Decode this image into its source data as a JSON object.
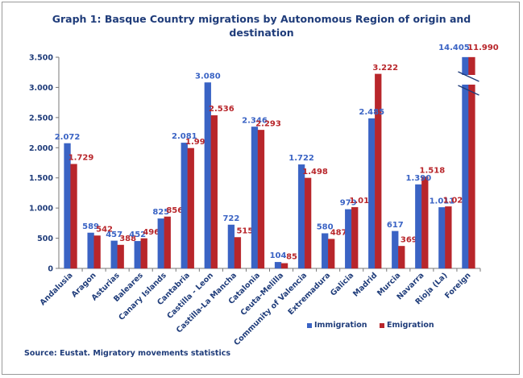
{
  "chart_data": {
    "type": "bar",
    "title_lines": [
      "Graph 1: Basque Country migrations  by Autonomous  Region of origin  and",
      "destination"
    ],
    "categories": [
      "Andalusia",
      "Aragon",
      "Asturias",
      "Baleares",
      "Canary Islands",
      "Cantabria",
      "Castilla - Leon",
      "Castilla-La Mancha",
      "Catalonia",
      "Ceuta-Melilla",
      "Community of Valencia",
      "Extremadura",
      "Galicia",
      "Madrid",
      "Murcia",
      "Navarra",
      "Rioja (La)",
      "Foreign"
    ],
    "series": [
      {
        "name": "Immigration",
        "color": "#3a63c4",
        "values": [
          2072,
          589,
          457,
          452,
          825,
          2081,
          3080,
          722,
          2346,
          104,
          1722,
          580,
          979,
          2485,
          617,
          1390,
          1011,
          14405
        ],
        "labels": [
          "2.072",
          "589",
          "457",
          "452",
          "825",
          "2.081",
          "3.080",
          "722",
          "2.346",
          "104",
          "1.722",
          "580",
          "979",
          "2.485",
          "617",
          "1.390",
          "1.011",
          "14.405"
        ]
      },
      {
        "name": "Emigration",
        "color": "#b8262b",
        "values": [
          1729,
          542,
          388,
          496,
          856,
          1992,
          2536,
          515,
          2293,
          85,
          1498,
          487,
          1014,
          3222,
          369,
          1518,
          1025,
          11990
        ],
        "labels": [
          "1.729",
          "542",
          "388",
          "496",
          "856",
          "1.992",
          "2.536",
          "515",
          "2.293",
          "85",
          "1.498",
          "487",
          "1.014",
          "3.222",
          "369",
          "1.518",
          "1.025",
          "11.990"
        ]
      }
    ],
    "ylim": [
      0,
      3500
    ],
    "yticks": [
      0,
      500,
      1000,
      1500,
      2000,
      2500,
      3000,
      3500
    ],
    "ytick_labels": [
      "0",
      "500",
      "1.000",
      "1.500",
      "2.000",
      "2.500",
      "3.000",
      "3.500"
    ],
    "axis_break": "Foreign",
    "grid": false,
    "legend_position": "bottom-right"
  },
  "legend": {
    "immigration": "Immigration",
    "emigration": "Emigration"
  },
  "source": "Source: Eustat. Migratory movements  statistics",
  "colors": {
    "title": "#1f3c7a",
    "immigration": "#3a63c4",
    "emigration": "#b8262b"
  }
}
